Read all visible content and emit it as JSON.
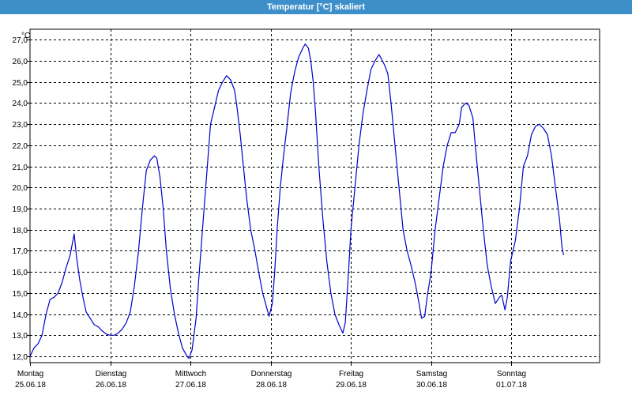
{
  "window": {
    "title": "Temperatur [°C] skaliert"
  },
  "chart_data": {
    "type": "line",
    "title": "Temperatur [°C] skaliert",
    "ylabel": "°C",
    "xlabel": "",
    "ylim": [
      11.7,
      27.5
    ],
    "yticks": [
      "12,0",
      "13,0",
      "14,0",
      "15,0",
      "16,0",
      "17,0",
      "18,0",
      "19,0",
      "20,0",
      "21,0",
      "22,0",
      "23,0",
      "24,0",
      "25,0",
      "26,0",
      "27,0"
    ],
    "xlim": [
      0,
      7.1
    ],
    "x_ticks": [
      {
        "x": 0,
        "day": "Montag",
        "date": "25.06.18"
      },
      {
        "x": 1,
        "day": "Dienstag",
        "date": "26.06.18"
      },
      {
        "x": 2,
        "day": "Mittwoch",
        "date": "27.06.18"
      },
      {
        "x": 3,
        "day": "Donnerstag",
        "date": "28.06.18"
      },
      {
        "x": 4,
        "day": "Freitag",
        "date": "29.06.18"
      },
      {
        "x": 5,
        "day": "Samstag",
        "date": "30.06.18"
      },
      {
        "x": 6,
        "day": "Sonntag",
        "date": "01.07.18"
      }
    ],
    "grid": true,
    "line_color": "#0000cc",
    "series": [
      {
        "points": [
          [
            0.0,
            12.0
          ],
          [
            0.05,
            12.4
          ],
          [
            0.1,
            12.6
          ],
          [
            0.15,
            13.0
          ],
          [
            0.2,
            14.0
          ],
          [
            0.25,
            14.7
          ],
          [
            0.3,
            14.8
          ],
          [
            0.35,
            15.0
          ],
          [
            0.4,
            15.5
          ],
          [
            0.45,
            16.2
          ],
          [
            0.5,
            16.8
          ],
          [
            0.55,
            17.8
          ],
          [
            0.58,
            16.7
          ],
          [
            0.62,
            15.6
          ],
          [
            0.66,
            14.8
          ],
          [
            0.7,
            14.1
          ],
          [
            0.75,
            13.8
          ],
          [
            0.8,
            13.5
          ],
          [
            0.85,
            13.4
          ],
          [
            0.9,
            13.2
          ],
          [
            0.95,
            13.05
          ],
          [
            1.0,
            13.0
          ],
          [
            1.05,
            13.0
          ],
          [
            1.1,
            13.1
          ],
          [
            1.15,
            13.3
          ],
          [
            1.2,
            13.6
          ],
          [
            1.25,
            14.1
          ],
          [
            1.3,
            15.3
          ],
          [
            1.35,
            16.9
          ],
          [
            1.4,
            19.0
          ],
          [
            1.45,
            20.8
          ],
          [
            1.5,
            21.3
          ],
          [
            1.55,
            21.5
          ],
          [
            1.58,
            21.4
          ],
          [
            1.62,
            20.5
          ],
          [
            1.66,
            19.0
          ],
          [
            1.7,
            17.0
          ],
          [
            1.75,
            15.2
          ],
          [
            1.8,
            14.0
          ],
          [
            1.85,
            13.1
          ],
          [
            1.9,
            12.4
          ],
          [
            1.95,
            12.05
          ],
          [
            1.98,
            11.9
          ],
          [
            2.02,
            12.3
          ],
          [
            2.07,
            13.8
          ],
          [
            2.1,
            15.5
          ],
          [
            2.15,
            18.0
          ],
          [
            2.2,
            20.5
          ],
          [
            2.25,
            23.0
          ],
          [
            2.3,
            23.8
          ],
          [
            2.35,
            24.6
          ],
          [
            2.4,
            25.0
          ],
          [
            2.45,
            25.3
          ],
          [
            2.5,
            25.1
          ],
          [
            2.55,
            24.6
          ],
          [
            2.58,
            23.8
          ],
          [
            2.62,
            22.5
          ],
          [
            2.66,
            21.0
          ],
          [
            2.7,
            19.5
          ],
          [
            2.75,
            18.0
          ],
          [
            2.8,
            17.1
          ],
          [
            2.85,
            16.0
          ],
          [
            2.9,
            15.0
          ],
          [
            2.95,
            14.3
          ],
          [
            2.98,
            13.9
          ],
          [
            3.02,
            14.5
          ],
          [
            3.05,
            16.0
          ],
          [
            3.08,
            18.0
          ],
          [
            3.12,
            20.0
          ],
          [
            3.16,
            21.5
          ],
          [
            3.2,
            22.8
          ],
          [
            3.25,
            24.5
          ],
          [
            3.3,
            25.5
          ],
          [
            3.35,
            26.2
          ],
          [
            3.4,
            26.6
          ],
          [
            3.43,
            26.8
          ],
          [
            3.47,
            26.6
          ],
          [
            3.5,
            26.0
          ],
          [
            3.53,
            25.0
          ],
          [
            3.56,
            23.5
          ],
          [
            3.6,
            21.0
          ],
          [
            3.65,
            18.5
          ],
          [
            3.7,
            16.5
          ],
          [
            3.75,
            15.0
          ],
          [
            3.8,
            14.0
          ],
          [
            3.85,
            13.5
          ],
          [
            3.9,
            13.1
          ],
          [
            3.93,
            13.6
          ],
          [
            3.97,
            16.0
          ],
          [
            4.0,
            18.0
          ],
          [
            4.05,
            20.0
          ],
          [
            4.1,
            22.0
          ],
          [
            4.15,
            23.5
          ],
          [
            4.2,
            24.6
          ],
          [
            4.25,
            25.6
          ],
          [
            4.3,
            26.0
          ],
          [
            4.35,
            26.3
          ],
          [
            4.38,
            26.1
          ],
          [
            4.42,
            25.8
          ],
          [
            4.46,
            25.4
          ],
          [
            4.5,
            24.0
          ],
          [
            4.55,
            22.0
          ],
          [
            4.6,
            20.0
          ],
          [
            4.65,
            18.0
          ],
          [
            4.7,
            17.0
          ],
          [
            4.75,
            16.3
          ],
          [
            4.8,
            15.5
          ],
          [
            4.85,
            14.5
          ],
          [
            4.88,
            13.8
          ],
          [
            4.92,
            13.9
          ],
          [
            4.95,
            14.8
          ],
          [
            5.0,
            16.0
          ],
          [
            5.05,
            18.0
          ],
          [
            5.1,
            19.5
          ],
          [
            5.15,
            21.0
          ],
          [
            5.2,
            22.0
          ],
          [
            5.25,
            22.6
          ],
          [
            5.3,
            22.6
          ],
          [
            5.35,
            23.0
          ],
          [
            5.38,
            23.8
          ],
          [
            5.43,
            24.0
          ],
          [
            5.47,
            23.9
          ],
          [
            5.52,
            23.3
          ],
          [
            5.55,
            22.0
          ],
          [
            5.6,
            20.0
          ],
          [
            5.65,
            18.0
          ],
          [
            5.7,
            16.3
          ],
          [
            5.75,
            15.3
          ],
          [
            5.8,
            14.5
          ],
          [
            5.85,
            14.8
          ],
          [
            5.88,
            14.9
          ],
          [
            5.92,
            14.2
          ],
          [
            5.95,
            14.8
          ],
          [
            5.99,
            16.5
          ],
          [
            6.05,
            17.5
          ],
          [
            6.1,
            19.0
          ],
          [
            6.15,
            21.0
          ],
          [
            6.2,
            21.5
          ],
          [
            6.25,
            22.5
          ],
          [
            6.3,
            22.9
          ],
          [
            6.35,
            23.0
          ],
          [
            6.4,
            22.8
          ],
          [
            6.45,
            22.5
          ],
          [
            6.5,
            21.5
          ],
          [
            6.55,
            20.0
          ],
          [
            6.6,
            18.5
          ],
          [
            6.63,
            17.2
          ],
          [
            6.65,
            16.8
          ]
        ]
      }
    ]
  }
}
